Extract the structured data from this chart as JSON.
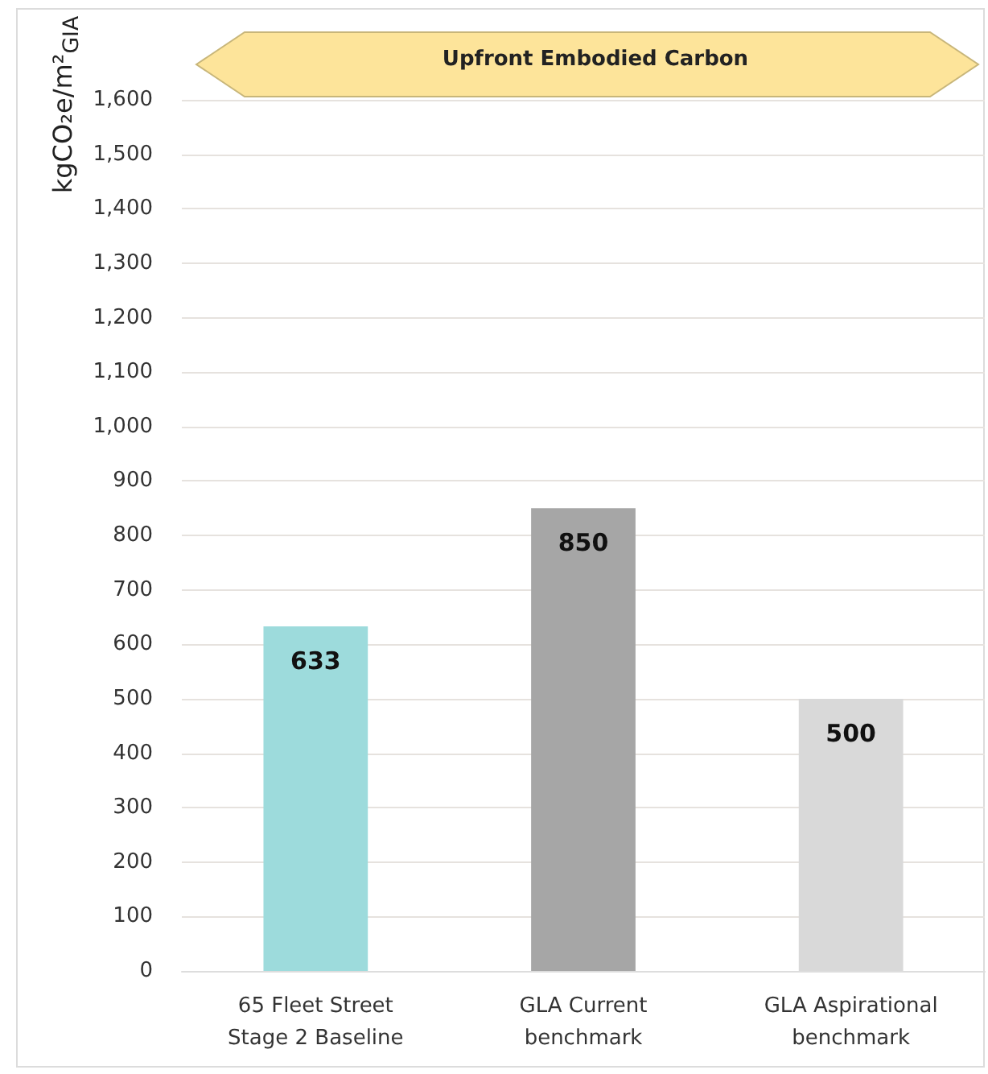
{
  "chart_data": {
    "type": "bar",
    "title": "Upfront Embodied Carbon",
    "ylabel": "kgCO₂e/m²$_{GIA}$",
    "categories": [
      "65 Fleet Street\nStage 2 Baseline",
      "GLA Current\nbenchmark",
      "GLA Aspirational\nbenchmark"
    ],
    "values": [
      633,
      850,
      500
    ],
    "colors": [
      "#9ddbdc",
      "#a6a6a6",
      "#d9d9d9"
    ],
    "ylim": [
      0,
      1600
    ],
    "yticks": [
      0,
      100,
      200,
      300,
      400,
      500,
      600,
      700,
      800,
      900,
      {
        "value": 1000,
        "label": "1,000"
      },
      {
        "value": 1100,
        "label": "1,100"
      },
      {
        "value": 1200,
        "label": "1,200"
      },
      {
        "value": 1300,
        "label": "1,300"
      },
      {
        "value": 1400,
        "label": "1,400"
      },
      {
        "value": 1500,
        "label": "1,500"
      },
      {
        "value": 1600,
        "label": "1,600"
      }
    ],
    "grid": "y",
    "data_labels": true
  }
}
